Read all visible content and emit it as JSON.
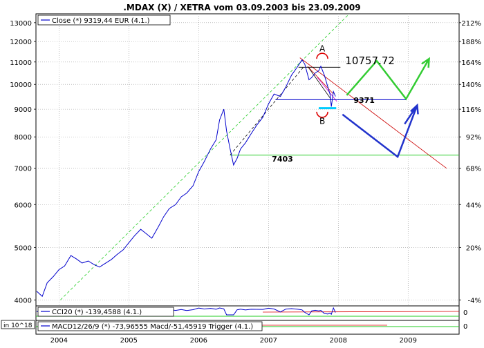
{
  "chart_data": {
    "type": "line",
    "title": ".MDAX (X) / XETRA vom 03.09.2003 bis 23.09.2009",
    "legend": {
      "main": "Close (*) 9319,44 EUR (4.1.)",
      "cci": "CCI20 (*) -139,4588 (4.1.)",
      "macd": "MACD12/26/9 (*) -73,96555 Macd/-51,45919 Trigger (4.1.)"
    },
    "scale_note": "in 10^18",
    "y_scale": "log",
    "ylim": [
      3900,
      13500
    ],
    "xlim": [
      2003.67,
      2009.73
    ],
    "x_tick_labels": [
      "2004",
      "2005",
      "2006",
      "2007",
      "2008",
      "2009"
    ],
    "x_tick_values": [
      2004.0,
      2005.0,
      2006.0,
      2007.0,
      2008.0,
      2009.0
    ],
    "y_tick_labels": [
      "4000",
      "5000",
      "6000",
      "7000",
      "8000",
      "9000",
      "10000",
      "11000",
      "12000",
      "13000"
    ],
    "y2_tick_labels": [
      {
        "label": "-4%",
        "value": 4000
      },
      {
        "label": "20%",
        "value": 5000
      },
      {
        "label": "44%",
        "value": 6000
      },
      {
        "label": "68%",
        "value": 7000
      },
      {
        "label": "92%",
        "value": 8000
      },
      {
        "label": "116%",
        "value": 9000
      },
      {
        "label": "140%",
        "value": 10000
      },
      {
        "label": "164%",
        "value": 11000
      },
      {
        "label": "188%",
        "value": 12000
      },
      {
        "label": "212%",
        "value": 13000
      }
    ],
    "series": [
      {
        "name": "Close",
        "color": "#0000cc",
        "points": [
          [
            2003.68,
            4150
          ],
          [
            2003.76,
            4060
          ],
          [
            2003.83,
            4300
          ],
          [
            2003.92,
            4420
          ],
          [
            2004.0,
            4550
          ],
          [
            2004.08,
            4620
          ],
          [
            2004.17,
            4830
          ],
          [
            2004.25,
            4760
          ],
          [
            2004.33,
            4680
          ],
          [
            2004.42,
            4720
          ],
          [
            2004.5,
            4650
          ],
          [
            2004.58,
            4600
          ],
          [
            2004.67,
            4680
          ],
          [
            2004.75,
            4750
          ],
          [
            2004.83,
            4850
          ],
          [
            2004.92,
            4950
          ],
          [
            2005.0,
            5100
          ],
          [
            2005.08,
            5250
          ],
          [
            2005.17,
            5400
          ],
          [
            2005.25,
            5300
          ],
          [
            2005.33,
            5200
          ],
          [
            2005.42,
            5450
          ],
          [
            2005.5,
            5700
          ],
          [
            2005.58,
            5900
          ],
          [
            2005.67,
            6000
          ],
          [
            2005.75,
            6200
          ],
          [
            2005.83,
            6300
          ],
          [
            2005.92,
            6500
          ],
          [
            2006.0,
            6900
          ],
          [
            2006.08,
            7200
          ],
          [
            2006.17,
            7600
          ],
          [
            2006.25,
            7900
          ],
          [
            2006.3,
            8600
          ],
          [
            2006.36,
            9000
          ],
          [
            2006.4,
            8200
          ],
          [
            2006.45,
            7600
          ],
          [
            2006.5,
            7100
          ],
          [
            2006.55,
            7300
          ],
          [
            2006.6,
            7600
          ],
          [
            2006.67,
            7800
          ],
          [
            2006.75,
            8100
          ],
          [
            2006.83,
            8400
          ],
          [
            2006.92,
            8700
          ],
          [
            2007.0,
            9200
          ],
          [
            2007.08,
            9600
          ],
          [
            2007.17,
            9500
          ],
          [
            2007.25,
            9900
          ],
          [
            2007.33,
            10400
          ],
          [
            2007.42,
            10800
          ],
          [
            2007.48,
            11100
          ],
          [
            2007.52,
            10900
          ],
          [
            2007.58,
            10200
          ],
          [
            2007.62,
            10300
          ],
          [
            2007.67,
            10500
          ],
          [
            2007.72,
            10600
          ],
          [
            2007.75,
            10800
          ],
          [
            2007.8,
            10400
          ],
          [
            2007.85,
            9900
          ],
          [
            2007.88,
            9600
          ],
          [
            2007.9,
            9100
          ],
          [
            2007.93,
            9700
          ],
          [
            2007.96,
            9500
          ]
        ]
      }
    ],
    "annotations": [
      {
        "text": "A",
        "color": "#dd0000",
        "at": [
          2007.77,
          11500
        ]
      },
      {
        "text": "B",
        "color": "#dd0000",
        "at": [
          2007.77,
          8450
        ]
      },
      {
        "text": "10757.72",
        "color": "#000000",
        "level": 10757.72,
        "line_x": [
          2007.43,
          2008.03
        ],
        "label_at": [
          2008.1,
          10900
        ]
      },
      {
        "text": "9371",
        "color": "#0000cc",
        "level": 9371,
        "line_x": [
          2007.1,
          2008.97
        ],
        "label_at": [
          2008.37,
          9250
        ]
      },
      {
        "text": "7403",
        "color": "#22cc22",
        "level": 7403,
        "line_x": [
          2006.45,
          2009.73
        ],
        "label_at": [
          2007.2,
          7200
        ]
      }
    ],
    "drawn_lines": [
      {
        "color": "#22cc22",
        "style": "dashed",
        "width": 0.8,
        "from": [
          2004.02,
          4000
        ],
        "to": [
          2008.4,
          14500
        ]
      },
      {
        "color": "#000000",
        "style": "dashed",
        "width": 0.8,
        "from": [
          2006.45,
          7403
        ],
        "to": [
          2007.5,
          10757
        ]
      },
      {
        "color": "#cc0000",
        "style": "solid",
        "width": 0.8,
        "from": [
          2007.45,
          11200
        ],
        "to": [
          2009.55,
          7000
        ]
      },
      {
        "color": "#000000",
        "style": "solid",
        "width": 0.8,
        "from": [
          2007.57,
          10757.72
        ],
        "to": [
          2007.9,
          9371
        ]
      },
      {
        "color": "#cc0000",
        "style": "solid",
        "width": 0.8,
        "from": [
          2007.56,
          10800
        ],
        "to": [
          2007.93,
          9600
        ]
      },
      {
        "color": "#cc00cc",
        "style": "solid",
        "width": 0.8,
        "from": [
          2007.7,
          10300
        ],
        "to": [
          2007.98,
          9300
        ]
      },
      {
        "color": "#00ccff",
        "style": "solid",
        "width": 3,
        "from": [
          2007.72,
          9040
        ],
        "to": [
          2007.97,
          9040
        ]
      }
    ],
    "forecast_paths": [
      {
        "color": "#2233cc",
        "width": 2.5,
        "points": [
          [
            2008.06,
            8800
          ],
          [
            2008.85,
            7350
          ],
          [
            2009.13,
            9150
          ]
        ],
        "arrowhead": true
      },
      {
        "color": "#2233cc",
        "width": 2.5,
        "points": [
          [
            2008.95,
            8450
          ],
          [
            2009.13,
            9150
          ]
        ],
        "arrowhead": false
      },
      {
        "color": "#33cc33",
        "width": 2.5,
        "points": [
          [
            2008.12,
            9550
          ],
          [
            2008.55,
            11050
          ],
          [
            2008.97,
            9400
          ],
          [
            2009.3,
            11150
          ]
        ],
        "arrowhead": true
      }
    ],
    "grid": true,
    "grid_style": "dotted",
    "line_color": "#0000cc"
  }
}
